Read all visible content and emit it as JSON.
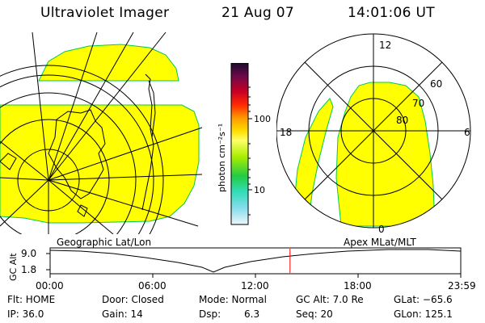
{
  "header": {
    "title": "Ultraviolet Imager",
    "date": "21 Aug 07",
    "time": "14:01:06 UT"
  },
  "panels": {
    "left_label": "Geographic Lat/Lon",
    "right_label": "Apex MLat/MLT"
  },
  "colorbar": {
    "unit": "photon cm⁻²s⁻¹",
    "tick_high": "100",
    "tick_low": "10"
  },
  "polar": {
    "lat_labels": [
      "60",
      "70",
      "80"
    ],
    "mlt_labels": [
      "12",
      "18",
      "6",
      "0"
    ]
  },
  "timeline": {
    "axis_label": "GC Alt",
    "y_high": "9.0",
    "y_low": "1.8",
    "x_ticks": [
      "00:00",
      "06:00",
      "12:00",
      "18:00",
      "23:59"
    ],
    "current_marker_color": "#ff0000",
    "current_time_hours": 14.02
  },
  "info": {
    "flt": "Flt: HOME",
    "ip": "IP: 36.0",
    "door": "Door: Closed",
    "gain": "Gain: 14",
    "mode": "Mode: Normal",
    "dsp_label": "Dsp:",
    "dsp_value": "6.3",
    "gc_alt": "GC Alt: 7.0 Re",
    "seq": "Seq: 20",
    "glat": "GLat: −65.6",
    "glon": "GLon: 125.1"
  },
  "colors": {
    "image_fill": "#ffff00",
    "image_edge": "#00cc44"
  }
}
